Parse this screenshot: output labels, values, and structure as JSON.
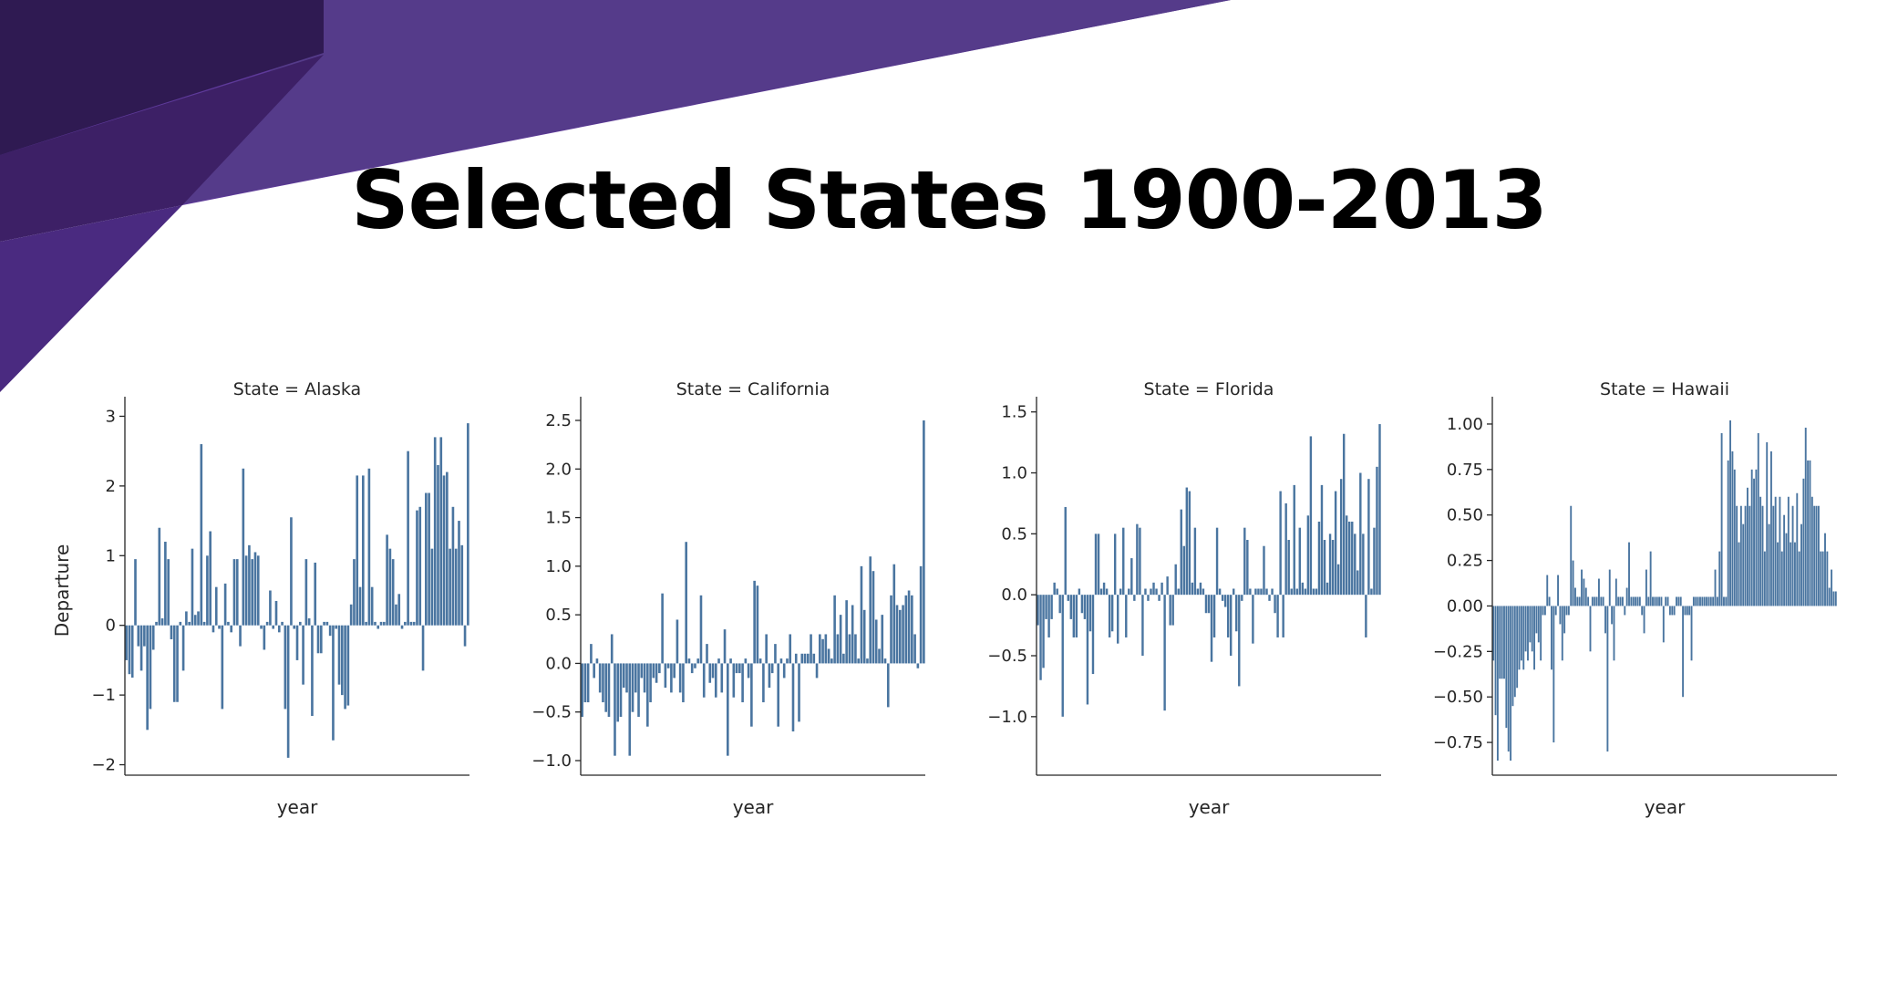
{
  "slide": {
    "title": "Selected States 1900-2013",
    "accent_colors": [
      "#2f1a52",
      "#3d2066",
      "#4a2a80",
      "#553b8a",
      "#5e3a9a"
    ]
  },
  "chart_data": [
    {
      "type": "bar",
      "title": "State = Alaska",
      "xlabel": "year",
      "ylabel": "Departure",
      "ylim": [
        -2.15,
        3.15
      ],
      "yticks": [
        -2,
        -1,
        0,
        1,
        2,
        3
      ],
      "ytick_labels": [
        "−2",
        "−1",
        "0",
        "1",
        "2",
        "3"
      ],
      "bar_color": "#4a75a0",
      "values": [
        -0.5,
        -0.7,
        -0.75,
        0.95,
        -0.3,
        -0.65,
        -0.3,
        -1.5,
        -1.2,
        -0.35,
        0.05,
        1.4,
        0.1,
        1.2,
        0.95,
        -0.2,
        -1.1,
        -1.1,
        0.05,
        -0.65,
        0.2,
        0.05,
        1.1,
        0.15,
        0.2,
        2.6,
        0.05,
        1.0,
        1.35,
        -0.1,
        0.55,
        -0.05,
        -1.2,
        0.6,
        0.05,
        -0.1,
        0.95,
        0.95,
        -0.3,
        2.25,
        1.0,
        1.15,
        0.95,
        1.05,
        1.0,
        -0.05,
        -0.35,
        0.05,
        0.5,
        -0.05,
        0.35,
        -0.1,
        0.05,
        -1.2,
        -1.9,
        1.55,
        -0.05,
        -0.5,
        0.05,
        -0.85,
        0.95,
        0.1,
        -1.3,
        0.9,
        -0.4,
        -0.4,
        0.05,
        0.05,
        -0.15,
        -1.65,
        -0.05,
        -0.85,
        -1.0,
        -1.2,
        -1.15,
        0.3,
        0.95,
        2.15,
        0.55,
        2.15,
        0.05,
        2.25,
        0.55,
        0.05,
        -0.05,
        0.05,
        0.05,
        1.3,
        1.1,
        0.95,
        0.3,
        0.45,
        -0.05,
        0.05,
        2.5,
        0.05,
        0.05,
        1.65,
        1.7,
        -0.65,
        1.9,
        1.9,
        1.1,
        2.7,
        2.3,
        2.7,
        2.15,
        2.2,
        1.1,
        1.7,
        1.1,
        1.5,
        1.15,
        -0.3,
        2.9
      ]
    },
    {
      "type": "bar",
      "title": "State = California",
      "xlabel": "year",
      "ylabel": "",
      "ylim": [
        -1.15,
        2.65
      ],
      "yticks": [
        -1.0,
        -0.5,
        0.0,
        0.5,
        1.0,
        1.5,
        2.0,
        2.5
      ],
      "ytick_labels": [
        "−1.0",
        "−0.5",
        "0.0",
        "0.5",
        "1.0",
        "1.5",
        "2.0",
        "2.5"
      ],
      "bar_color": "#4a75a0",
      "values": [
        -0.55,
        -0.4,
        -0.4,
        0.2,
        -0.15,
        0.05,
        -0.3,
        -0.4,
        -0.5,
        -0.55,
        0.3,
        -0.95,
        -0.6,
        -0.55,
        -0.25,
        -0.3,
        -0.95,
        -0.5,
        -0.3,
        -0.55,
        -0.15,
        -0.3,
        -0.65,
        -0.4,
        -0.15,
        -0.2,
        -0.1,
        0.72,
        -0.25,
        -0.05,
        -0.3,
        -0.15,
        0.45,
        -0.3,
        -0.4,
        1.25,
        0.05,
        -0.1,
        -0.05,
        0.05,
        0.7,
        -0.35,
        0.2,
        -0.2,
        -0.15,
        -0.35,
        0.05,
        -0.3,
        0.35,
        -0.95,
        0.05,
        -0.35,
        -0.1,
        -0.1,
        -0.4,
        0.05,
        -0.15,
        -0.65,
        0.85,
        0.8,
        0.05,
        -0.4,
        0.3,
        -0.25,
        -0.1,
        0.2,
        -0.65,
        0.05,
        -0.15,
        0.05,
        0.3,
        -0.7,
        0.1,
        -0.6,
        0.1,
        0.1,
        0.1,
        0.3,
        0.1,
        -0.15,
        0.3,
        0.25,
        0.3,
        0.15,
        0.05,
        0.7,
        0.3,
        0.5,
        0.1,
        0.65,
        0.3,
        0.6,
        0.3,
        0.05,
        1.0,
        0.55,
        0.05,
        1.1,
        0.95,
        0.45,
        0.15,
        0.5,
        0.05,
        -0.45,
        0.7,
        1.02,
        0.6,
        0.55,
        0.6,
        0.7,
        0.75,
        0.7,
        0.3,
        -0.05,
        1.0,
        2.5
      ]
    },
    {
      "type": "bar",
      "title": "State = Florida",
      "xlabel": "year",
      "ylabel": "",
      "ylim": [
        -1.48,
        1.55
      ],
      "yticks": [
        -1.0,
        -0.5,
        0.0,
        0.5,
        1.0,
        1.5
      ],
      "ytick_labels": [
        "−1.0",
        "−0.5",
        "0.0",
        "0.5",
        "1.0",
        "1.5"
      ],
      "bar_color": "#4a75a0",
      "values": [
        -0.25,
        -0.7,
        -0.6,
        -0.2,
        -0.35,
        -0.2,
        0.1,
        0.05,
        -0.15,
        -1.0,
        0.72,
        -0.05,
        -0.2,
        -0.35,
        -0.35,
        0.05,
        -0.15,
        -0.2,
        -0.9,
        -0.3,
        -0.65,
        0.5,
        0.5,
        0.05,
        0.1,
        0.05,
        -0.35,
        -0.3,
        0.5,
        -0.4,
        0.05,
        0.55,
        -0.35,
        0.05,
        0.3,
        -0.05,
        0.58,
        0.55,
        -0.5,
        0.05,
        -0.05,
        0.05,
        0.1,
        0.05,
        -0.05,
        0.1,
        -0.95,
        0.15,
        -0.25,
        -0.25,
        0.25,
        0.05,
        0.7,
        0.4,
        0.88,
        0.85,
        0.1,
        0.55,
        0.05,
        0.1,
        0.05,
        -0.15,
        -0.15,
        -0.55,
        -0.35,
        0.55,
        0.05,
        -0.05,
        -0.1,
        -0.35,
        -0.5,
        0.05,
        -0.3,
        -0.75,
        -0.05,
        0.55,
        0.45,
        0.05,
        -0.4,
        0.05,
        0.05,
        0.05,
        0.4,
        0.05,
        -0.05,
        0.05,
        -0.15,
        -0.35,
        0.85,
        -0.35,
        0.75,
        0.45,
        0.05,
        0.9,
        0.05,
        0.55,
        0.1,
        0.05,
        0.65,
        1.3,
        0.05,
        0.05,
        0.6,
        0.9,
        0.45,
        0.1,
        0.5,
        0.45,
        0.85,
        0.25,
        0.95,
        1.32,
        0.65,
        0.6,
        0.6,
        0.5,
        0.2,
        1.0,
        0.5,
        -0.35,
        0.95,
        0.05,
        0.55,
        1.05,
        1.4
      ]
    },
    {
      "type": "bar",
      "title": "State = Hawaii",
      "xlabel": "year",
      "ylabel": "",
      "ylim": [
        -0.93,
        1.1
      ],
      "yticks": [
        -0.75,
        -0.5,
        -0.25,
        0.0,
        0.25,
        0.5,
        0.75,
        1.0
      ],
      "ytick_labels": [
        "−0.75",
        "−0.50",
        "−0.25",
        "0.00",
        "0.25",
        "0.50",
        "0.75",
        "1.00"
      ],
      "bar_color": "#4a75a0",
      "values": [
        -0.3,
        -0.6,
        -0.85,
        -0.4,
        -0.4,
        -0.4,
        -0.67,
        -0.8,
        -0.85,
        -0.55,
        -0.5,
        -0.45,
        -0.35,
        -0.3,
        -0.35,
        -0.25,
        -0.3,
        -0.2,
        -0.25,
        -0.35,
        -0.15,
        -0.2,
        -0.3,
        -0.05,
        -0.05,
        0.17,
        0.05,
        -0.35,
        -0.75,
        -0.05,
        0.17,
        -0.1,
        -0.3,
        -0.15,
        -0.05,
        -0.05,
        0.55,
        0.25,
        0.1,
        0.05,
        0.05,
        0.2,
        0.15,
        0.1,
        0.05,
        -0.25,
        0.05,
        0.05,
        0.05,
        0.15,
        0.05,
        0.05,
        -0.15,
        -0.8,
        0.2,
        -0.1,
        -0.3,
        0.15,
        0.05,
        0.05,
        0.05,
        -0.05,
        0.1,
        0.35,
        0.05,
        0.05,
        0.05,
        0.05,
        0.05,
        -0.05,
        -0.15,
        0.2,
        0.05,
        0.3,
        0.05,
        0.05,
        0.05,
        0.05,
        0.05,
        -0.2,
        0.05,
        0.05,
        -0.05,
        -0.05,
        -0.05,
        0.05,
        0.05,
        0.05,
        -0.5,
        -0.05,
        -0.05,
        -0.05,
        -0.3,
        0.05,
        0.05,
        0.05,
        0.05,
        0.05,
        0.05,
        0.05,
        0.05,
        0.05,
        0.05,
        0.2,
        0.05,
        0.3,
        0.95,
        0.05,
        0.05,
        0.8,
        1.02,
        0.85,
        0.75,
        0.55,
        0.35,
        0.55,
        0.45,
        0.55,
        0.65,
        0.55,
        0.75,
        0.7,
        0.75,
        0.95,
        0.6,
        0.55,
        0.3,
        0.9,
        0.45,
        0.85,
        0.55,
        0.6,
        0.35,
        0.6,
        0.3,
        0.5,
        0.4,
        0.6,
        0.35,
        0.55,
        0.35,
        0.62,
        0.3,
        0.45,
        0.7,
        0.98,
        0.8,
        0.8,
        0.6,
        0.55,
        0.55,
        0.55,
        0.3,
        0.3,
        0.4,
        0.3,
        0.1,
        0.2,
        0.08,
        0.08
      ]
    }
  ]
}
